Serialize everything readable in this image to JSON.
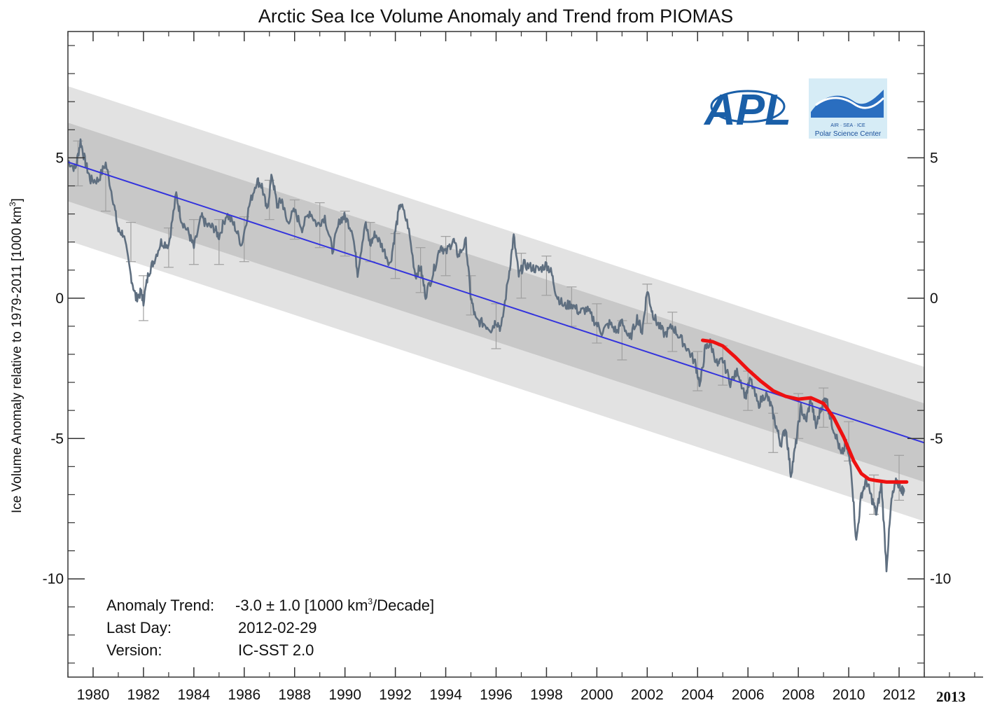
{
  "chart_data": {
    "type": "line",
    "title": "Arctic Sea Ice Volume Anomaly and Trend from PIOMAS",
    "ylabel": "Ice Volume Anomaly relative to 1979-2011 [1000 km",
    "ylabel_superscript": "3",
    "ylabel_suffix": "]",
    "xlim": [
      1979.0,
      2013.0
    ],
    "ylim": [
      -13.5,
      9.5
    ],
    "x_ticks": [
      1980,
      1982,
      1984,
      1986,
      1988,
      1990,
      1992,
      1994,
      1996,
      1998,
      2000,
      2002,
      2004,
      2006,
      2008,
      2010,
      2012
    ],
    "y_ticks": [
      5,
      0,
      -5,
      -10
    ],
    "extra_x_label": "2013",
    "trend": {
      "x": [
        1979.0,
        2013.0
      ],
      "y": [
        4.85,
        -5.15
      ],
      "color": "#3333dd"
    },
    "bands": {
      "outer": {
        "upper": [
          7.55,
          -2.45
        ],
        "lower": [
          2.05,
          -7.95
        ],
        "color": "#e2e2e2"
      },
      "inner": {
        "upper": [
          6.25,
          -3.75
        ],
        "lower": [
          3.45,
          -6.55
        ],
        "color": "#c8c8c8"
      }
    },
    "series": [
      {
        "color": "#5f6f80",
        "x": [
          1979.0,
          1979.3,
          1979.5,
          1979.7,
          1979.9,
          1980.2,
          1980.5,
          1980.8,
          1981.0,
          1981.2,
          1981.5,
          1981.7,
          1981.9,
          1982.0,
          1982.2,
          1982.4,
          1982.7,
          1983.0,
          1983.3,
          1983.5,
          1983.8,
          1984.0,
          1984.3,
          1984.5,
          1984.8,
          1985.0,
          1985.3,
          1985.6,
          1985.9,
          1986.2,
          1986.5,
          1986.7,
          1986.9,
          1987.1,
          1987.3,
          1987.5,
          1987.7,
          1988.0,
          1988.3,
          1988.6,
          1988.9,
          1989.2,
          1989.5,
          1989.8,
          1990.0,
          1990.3,
          1990.5,
          1990.8,
          1991.0,
          1991.2,
          1991.5,
          1991.8,
          1992.0,
          1992.2,
          1992.5,
          1992.8,
          1993.0,
          1993.2,
          1993.5,
          1993.8,
          1994.0,
          1994.3,
          1994.5,
          1994.8,
          1995.0,
          1995.2,
          1995.5,
          1995.8,
          1996.0,
          1996.2,
          1996.5,
          1996.7,
          1996.9,
          1997.1,
          1997.4,
          1997.7,
          1998.0,
          1998.2,
          1998.4,
          1998.7,
          1999.0,
          1999.3,
          1999.6,
          1999.9,
          2000.2,
          2000.5,
          2000.8,
          2001.0,
          2001.3,
          2001.6,
          2001.8,
          2002.0,
          2002.2,
          2002.4,
          2002.7,
          2003.0,
          2003.3,
          2003.6,
          2003.9,
          2004.1,
          2004.3,
          2004.5,
          2004.8,
          2005.0,
          2005.3,
          2005.6,
          2005.9,
          2006.1,
          2006.4,
          2006.7,
          2006.9,
          2007.1,
          2007.3,
          2007.5,
          2007.7,
          2007.9,
          2008.1,
          2008.3,
          2008.5,
          2008.7,
          2008.9,
          2009.1,
          2009.3,
          2009.5,
          2009.7,
          2009.9,
          2010.1,
          2010.3,
          2010.5,
          2010.7,
          2010.9,
          2011.1,
          2011.3,
          2011.5,
          2011.7,
          2011.9,
          2012.1,
          2012.2
        ],
        "y": [
          4.9,
          4.6,
          5.6,
          4.8,
          4.2,
          4.2,
          4.8,
          3.5,
          2.4,
          2.3,
          0.8,
          0.0,
          0.2,
          -0.1,
          0.9,
          1.3,
          2.0,
          1.9,
          3.7,
          2.8,
          2.3,
          1.8,
          2.9,
          2.6,
          2.5,
          2.2,
          3.0,
          2.6,
          1.9,
          3.3,
          4.2,
          4.0,
          3.1,
          4.4,
          3.3,
          3.5,
          2.7,
          3.1,
          2.5,
          3.1,
          2.6,
          2.9,
          1.7,
          2.8,
          2.9,
          2.4,
          0.9,
          2.7,
          1.9,
          2.3,
          1.8,
          1.2,
          2.4,
          3.4,
          2.6,
          0.8,
          1.1,
          0.1,
          0.9,
          1.9,
          1.6,
          2.1,
          1.5,
          2.0,
          0.0,
          -0.8,
          -0.9,
          -1.1,
          -0.8,
          -1.1,
          0.8,
          2.2,
          0.8,
          1.2,
          1.1,
          1.0,
          1.2,
          0.9,
          0.1,
          -0.3,
          -0.2,
          -0.5,
          -0.4,
          -0.8,
          -1.2,
          -0.9,
          -1.2,
          -0.8,
          -1.5,
          -0.7,
          -1.2,
          0.3,
          -0.5,
          -0.9,
          -1.3,
          -1.0,
          -1.4,
          -1.8,
          -2.3,
          -3.1,
          -1.8,
          -1.6,
          -2.4,
          -2.2,
          -3.0,
          -2.6,
          -3.5,
          -2.9,
          -3.8,
          -3.4,
          -3.8,
          -4.5,
          -5.2,
          -4.6,
          -6.3,
          -5.2,
          -3.9,
          -4.4,
          -3.6,
          -4.6,
          -3.9,
          -3.5,
          -4.4,
          -4.9,
          -5.6,
          -5.2,
          -6.1,
          -8.7,
          -7.0,
          -6.5,
          -7.1,
          -7.7,
          -6.6,
          -9.6,
          -7.2,
          -6.5,
          -6.8,
          -6.9
        ]
      }
    ],
    "error_bars": [
      {
        "x": 1979.4,
        "y": 4.8,
        "e": 0.8
      },
      {
        "x": 1980.5,
        "y": 3.8,
        "e": 0.7
      },
      {
        "x": 1981.5,
        "y": 2.0,
        "e": 0.7
      },
      {
        "x": 1982.0,
        "y": 0.0,
        "e": 0.8
      },
      {
        "x": 1983.0,
        "y": 1.8,
        "e": 0.7
      },
      {
        "x": 1984.0,
        "y": 2.0,
        "e": 0.8
      },
      {
        "x": 1985.0,
        "y": 2.0,
        "e": 0.8
      },
      {
        "x": 1986.0,
        "y": 2.1,
        "e": 0.8
      },
      {
        "x": 1987.0,
        "y": 3.5,
        "e": 0.7
      },
      {
        "x": 1988.0,
        "y": 2.8,
        "e": 0.7
      },
      {
        "x": 1989.0,
        "y": 2.6,
        "e": 0.8
      },
      {
        "x": 1990.0,
        "y": 2.3,
        "e": 0.8
      },
      {
        "x": 1991.0,
        "y": 2.0,
        "e": 0.7
      },
      {
        "x": 1992.0,
        "y": 1.5,
        "e": 0.8
      },
      {
        "x": 1993.0,
        "y": 1.0,
        "e": 0.8
      },
      {
        "x": 1994.0,
        "y": 1.5,
        "e": 0.7
      },
      {
        "x": 1995.0,
        "y": 0.1,
        "e": 0.7
      },
      {
        "x": 1996.0,
        "y": -1.0,
        "e": 0.8
      },
      {
        "x": 1997.0,
        "y": 0.8,
        "e": 0.8
      },
      {
        "x": 1998.0,
        "y": 0.8,
        "e": 0.7
      },
      {
        "x": 1999.0,
        "y": -0.3,
        "e": 0.7
      },
      {
        "x": 2000.0,
        "y": -0.9,
        "e": 0.7
      },
      {
        "x": 2001.0,
        "y": -1.5,
        "e": 0.7
      },
      {
        "x": 2002.0,
        "y": -0.2,
        "e": 0.7
      },
      {
        "x": 2003.0,
        "y": -1.2,
        "e": 0.7
      },
      {
        "x": 2004.0,
        "y": -2.6,
        "e": 0.7
      },
      {
        "x": 2005.0,
        "y": -2.4,
        "e": 0.7
      },
      {
        "x": 2006.0,
        "y": -3.3,
        "e": 0.7
      },
      {
        "x": 2007.0,
        "y": -4.8,
        "e": 0.7
      },
      {
        "x": 2008.0,
        "y": -4.2,
        "e": 0.8
      },
      {
        "x": 2009.0,
        "y": -3.9,
        "e": 0.7
      },
      {
        "x": 2010.0,
        "y": -5.1,
        "e": 0.7
      },
      {
        "x": 2011.0,
        "y": -7.0,
        "e": 0.7
      },
      {
        "x": 2012.0,
        "y": -6.4,
        "e": 0.8
      }
    ],
    "red_curve": {
      "color": "#ee1111",
      "x": [
        2004.2,
        2004.6,
        2005.0,
        2005.5,
        2006.0,
        2006.5,
        2007.0,
        2007.5,
        2008.0,
        2008.5,
        2009.0,
        2009.4,
        2009.8,
        2010.2,
        2010.5,
        2010.8,
        2011.1,
        2011.5,
        2012.0,
        2012.3
      ],
      "y": [
        -1.5,
        -1.55,
        -1.7,
        -2.1,
        -2.55,
        -2.95,
        -3.3,
        -3.5,
        -3.6,
        -3.55,
        -3.75,
        -4.25,
        -4.95,
        -5.8,
        -6.25,
        -6.45,
        -6.5,
        -6.55,
        -6.55,
        -6.55
      ]
    },
    "annotations": {
      "trend_label": "Anomaly Trend:",
      "trend_value": "-3.0 ± 1.0 [1000 km",
      "trend_sup": "3",
      "trend_suffix": "/Decade]",
      "lastday_label": "Last Day:",
      "lastday_value": "2012-02-29",
      "version_label": "Version:",
      "version_value": "IC-SST 2.0"
    },
    "logos": {
      "apl": "APL",
      "psc_line1": "AIR · SEA · ICE",
      "psc_line2": "Polar Science Center"
    }
  }
}
